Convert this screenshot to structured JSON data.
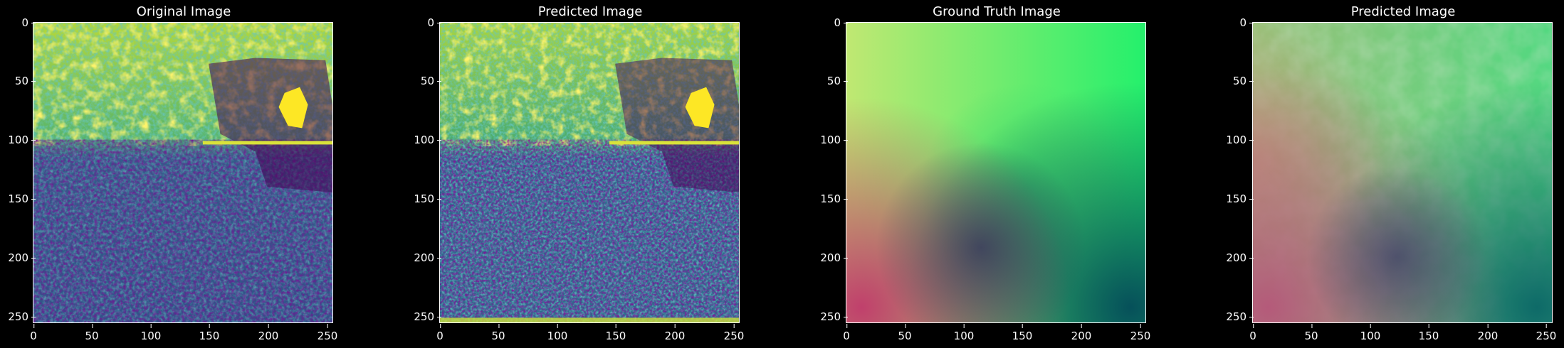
{
  "panels": [
    {
      "id": "original",
      "title": "Original Image"
    },
    {
      "id": "predicted-1",
      "title": "Predicted Image"
    },
    {
      "id": "ground-truth",
      "title": "Ground Truth Image"
    },
    {
      "id": "predicted-2",
      "title": "Predicted Image"
    }
  ],
  "axes": {
    "x_ticks": [
      "0",
      "50",
      "100",
      "150",
      "200",
      "250"
    ],
    "y_ticks": [
      "0",
      "50",
      "100",
      "150",
      "200",
      "250"
    ],
    "x_range": [
      0,
      256
    ],
    "y_range": [
      0,
      256
    ]
  },
  "colors": {
    "background": "#000000",
    "viridis_low": "#440154",
    "viridis_mid": "#21908d",
    "viridis_high": "#fde725",
    "flow_green": "#2cf06e",
    "flow_magenta": "#b8406e",
    "flow_teal": "#0a5a5c",
    "flow_yellow": "#c8ee72"
  }
}
